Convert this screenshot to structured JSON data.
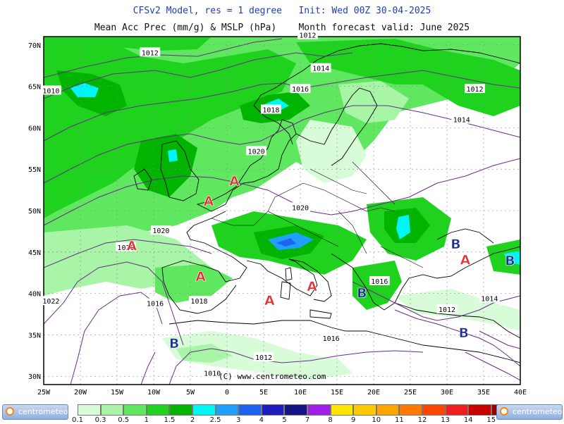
{
  "header": {
    "line1": "CFSv2 Model, res = 1 degree   Init: Wed 00Z 30-04-2025",
    "line2": "Mean Acc Prec (mm/g) & MSLP (hPa)    Month forecast valid: June 2025"
  },
  "copyright": "(C) www.centrometeo.com",
  "axes": {
    "lat_labels": [
      "70N",
      "65N",
      "60N",
      "55N",
      "50N",
      "45N",
      "40N",
      "35N",
      "30N"
    ],
    "lon_labels": [
      "25W",
      "20W",
      "15W",
      "10W",
      "5W",
      "0",
      "5E",
      "10E",
      "15E",
      "20E",
      "25E",
      "30E",
      "35E",
      "40E"
    ]
  },
  "isobar_labels": [
    {
      "text": "1012",
      "lon": -10.5,
      "lat": 69.1
    },
    {
      "text": "1012",
      "lon": 11.0,
      "lat": 71.2
    },
    {
      "text": "1014",
      "lon": 12.8,
      "lat": 67.2
    },
    {
      "text": "1010",
      "lon": -24.0,
      "lat": 64.5
    },
    {
      "text": "1016",
      "lon": 10.0,
      "lat": 64.7
    },
    {
      "text": "1018",
      "lon": 6.0,
      "lat": 62.2
    },
    {
      "text": "1012",
      "lon": 33.8,
      "lat": 64.7
    },
    {
      "text": "1014",
      "lon": 32.0,
      "lat": 61.0
    },
    {
      "text": "1020",
      "lon": 4.0,
      "lat": 57.2
    },
    {
      "text": "1020",
      "lon": 10.0,
      "lat": 50.4
    },
    {
      "text": "1020",
      "lon": -9.0,
      "lat": 47.6
    },
    {
      "text": "1020",
      "lon": -13.8,
      "lat": 45.6
    },
    {
      "text": "1016",
      "lon": 20.8,
      "lat": 41.5
    },
    {
      "text": "1014",
      "lon": 35.8,
      "lat": 39.4
    },
    {
      "text": "1012",
      "lon": 30.0,
      "lat": 38.1
    },
    {
      "text": "1016",
      "lon": -9.8,
      "lat": 38.8
    },
    {
      "text": "1018",
      "lon": -3.8,
      "lat": 39.1
    },
    {
      "text": "1022",
      "lon": -24.0,
      "lat": 39.1
    },
    {
      "text": "1016",
      "lon": 14.2,
      "lat": 34.6
    },
    {
      "text": "1012",
      "lon": 5.0,
      "lat": 32.3
    },
    {
      "text": "1010",
      "lon": -2.0,
      "lat": 30.4
    }
  ],
  "pressure_centers": [
    {
      "text": "A",
      "lon": 1.0,
      "lat": 53.6,
      "color": "#e03030"
    },
    {
      "text": "A",
      "lon": -2.5,
      "lat": 51.2,
      "color": "#e03030"
    },
    {
      "text": "A",
      "lon": -13.0,
      "lat": 45.8,
      "color": "#e03030"
    },
    {
      "text": "A",
      "lon": -3.6,
      "lat": 42.1,
      "color": "#e03030"
    },
    {
      "text": "A",
      "lon": 5.8,
      "lat": 39.2,
      "color": "#e03030"
    },
    {
      "text": "A",
      "lon": 11.6,
      "lat": 40.9,
      "color": "#e03030"
    },
    {
      "text": "A",
      "lon": 32.5,
      "lat": 44.1,
      "color": "#e03030"
    },
    {
      "text": "B",
      "lon": 31.2,
      "lat": 46.0,
      "color": "#1f2f8f"
    },
    {
      "text": "B",
      "lon": 38.6,
      "lat": 44.0,
      "color": "#1f2f8f"
    },
    {
      "text": "B",
      "lon": 18.4,
      "lat": 40.1,
      "color": "#1f2f8f"
    },
    {
      "text": "B",
      "lon": 32.3,
      "lat": 35.3,
      "color": "#1f2f8f"
    },
    {
      "text": "B",
      "lon": -7.2,
      "lat": 34.0,
      "color": "#1f2f8f"
    }
  ],
  "colorbar": {
    "labels": [
      "0.1",
      "0.3",
      "0.5",
      "1",
      "1.5",
      "2",
      "2.5",
      "3",
      "4",
      "5",
      "7",
      "8",
      "9",
      "10",
      "11",
      "12",
      "13",
      "14",
      "15"
    ],
    "colors": [
      "#d8fbd8",
      "#a8f5a8",
      "#5fe85f",
      "#1ed21e",
      "#00b400",
      "#00f5f5",
      "#1fa0ff",
      "#1e64f0",
      "#1e1ebe",
      "#141487",
      "#a01ee6",
      "#ffe600",
      "#ffc800",
      "#ffa500",
      "#ff7800",
      "#ff4600",
      "#f01e1e",
      "#c80000",
      "#960000"
    ],
    "logo_text": "centrometeo"
  },
  "map": {
    "lon_range": [
      -25,
      40
    ],
    "lat_range": [
      29,
      71
    ],
    "land_color": "#ffffff",
    "isobar_color": "#6a2c8a"
  }
}
